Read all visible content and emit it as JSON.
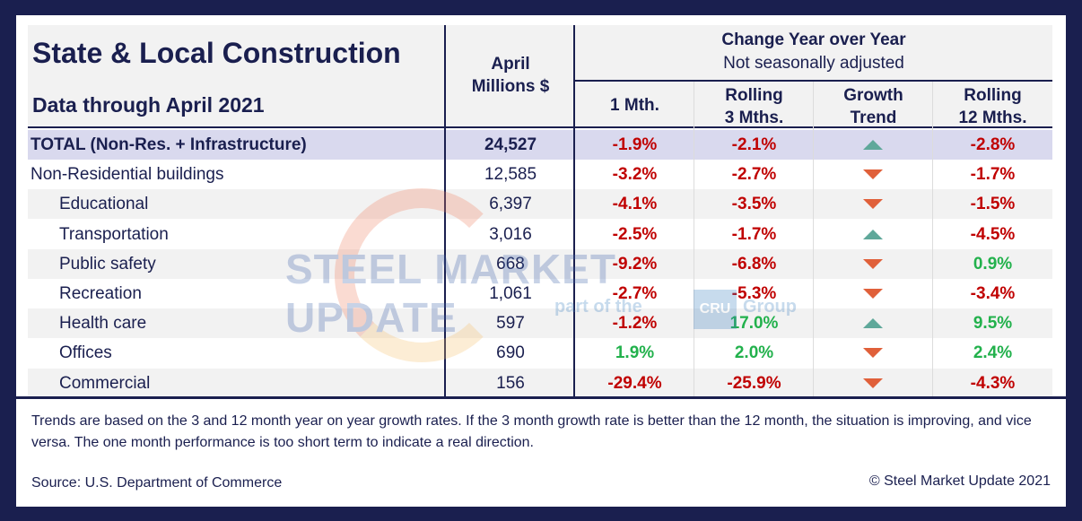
{
  "header": {
    "title": "State & Local Construction",
    "subtitle": "Data through April 2021",
    "col_april_line1": "April",
    "col_april_line2": "Millions $",
    "change_title": "Change Year over Year",
    "change_sub": "Not seasonally adjusted",
    "col_1mth": "1 Mth.",
    "col_r3_line1": "Rolling",
    "col_r3_line2": "3 Mths.",
    "col_trend_line1": "Growth",
    "col_trend_line2": "Trend",
    "col_r12_line1": "Rolling",
    "col_r12_line2": "12 Mths."
  },
  "rows": [
    {
      "name": "TOTAL (Non-Res. + Infrastructure)",
      "value": "24,527",
      "m1": "-1.9%",
      "r3": "-2.1%",
      "trend": "up",
      "r12": "-2.8%"
    },
    {
      "name": "Non-Residential buildings",
      "value": "12,585",
      "m1": "-3.2%",
      "r3": "-2.7%",
      "trend": "down",
      "r12": "-1.7%"
    },
    {
      "name": "Educational",
      "value": "6,397",
      "m1": "-4.1%",
      "r3": "-3.5%",
      "trend": "down",
      "r12": "-1.5%"
    },
    {
      "name": "Transportation",
      "value": "3,016",
      "m1": "-2.5%",
      "r3": "-1.7%",
      "trend": "up",
      "r12": "-4.5%"
    },
    {
      "name": "Public safety",
      "value": "668",
      "m1": "-9.2%",
      "r3": "-6.8%",
      "trend": "down",
      "r12": "0.9%"
    },
    {
      "name": "Recreation",
      "value": "1,061",
      "m1": "-2.7%",
      "r3": "-5.3%",
      "trend": "down",
      "r12": "-3.4%"
    },
    {
      "name": "Health care",
      "value": "597",
      "m1": "-1.2%",
      "r3": "17.0%",
      "trend": "up",
      "r12": "9.5%"
    },
    {
      "name": "Offices",
      "value": "690",
      "m1": "1.9%",
      "r3": "2.0%",
      "trend": "down",
      "r12": "2.4%"
    },
    {
      "name": "Commercial",
      "value": "156",
      "m1": "-29.4%",
      "r3": "-25.9%",
      "trend": "down",
      "r12": "-4.3%"
    }
  ],
  "footer": {
    "note": "Trends are based on the 3 and 12 month year on year growth rates. If the 3 month growth rate is better than the 12 month, the situation is improving, and vice versa. The one month performance is too short term to indicate a real direction.",
    "source": "Source: U.S. Department of Commerce",
    "copyright": "© Steel Market Update 2021"
  },
  "watermark": {
    "brand": "STEEL MARKET UPDATE",
    "part_of": "part of the",
    "cru": "CRU",
    "group": "Group"
  },
  "colors": {
    "navy": "#1a1f4f",
    "negative": "#c00000",
    "positive": "#22b14c",
    "trend_up": "#5fa89a",
    "trend_down": "#e0603a",
    "total_row": "#d9d9ee"
  }
}
